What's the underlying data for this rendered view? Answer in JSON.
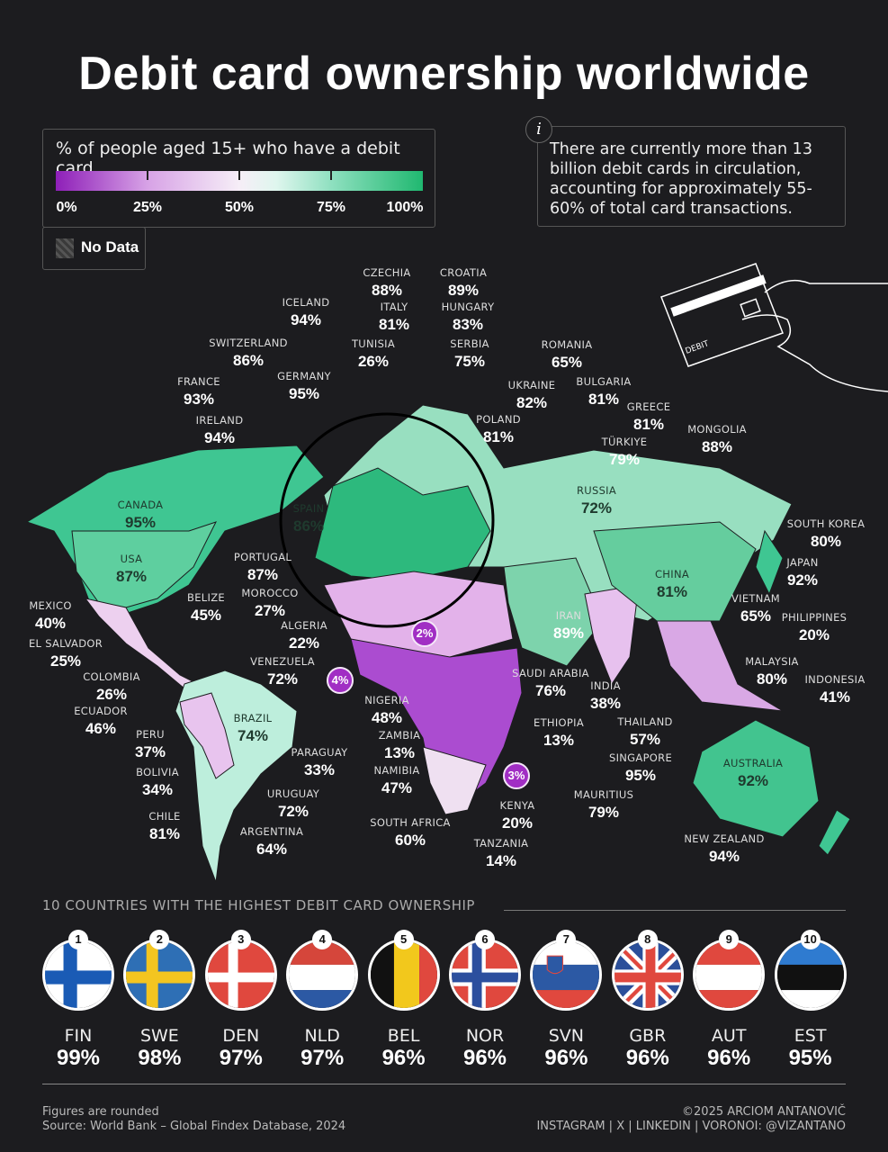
{
  "title": "Debit card ownership worldwide",
  "legend": {
    "title": "% of people aged 15+ who have a debit card",
    "ticks": [
      "0%",
      "25%",
      "50%",
      "75%",
      "100%"
    ],
    "no_data": "No Data",
    "colors": {
      "low": "#8e1fb8",
      "mid": "#f6eef7",
      "high": "#20b870",
      "no_data": "#444444"
    }
  },
  "info": {
    "icon": "info-icon",
    "text": "There are currently more than 13 billion debit cards in circulation, accounting for approximately 55-60% of total card transactions."
  },
  "card_illustration": {
    "label": "DEBIT"
  },
  "countries": [
    {
      "name": "CZECHIA",
      "value": "88%"
    },
    {
      "name": "CROATIA",
      "value": "89%"
    },
    {
      "name": "ICELAND",
      "value": "94%"
    },
    {
      "name": "ITALY",
      "value": "81%"
    },
    {
      "name": "HUNGARY",
      "value": "83%"
    },
    {
      "name": "SWITZERLAND",
      "value": "86%"
    },
    {
      "name": "TUNISIA",
      "value": "26%"
    },
    {
      "name": "SERBIA",
      "value": "75%"
    },
    {
      "name": "ROMANIA",
      "value": "65%"
    },
    {
      "name": "GERMANY",
      "value": "95%"
    },
    {
      "name": "FRANCE",
      "value": "93%"
    },
    {
      "name": "UKRAINE",
      "value": "82%"
    },
    {
      "name": "BULGARIA",
      "value": "81%"
    },
    {
      "name": "GREECE",
      "value": "81%"
    },
    {
      "name": "IRELAND",
      "value": "94%"
    },
    {
      "name": "POLAND",
      "value": "81%"
    },
    {
      "name": "TÜRKIYE",
      "value": "79%"
    },
    {
      "name": "MONGOLIA",
      "value": "88%"
    },
    {
      "name": "CANADA",
      "value": "95%"
    },
    {
      "name": "RUSSIA",
      "value": "72%"
    },
    {
      "name": "SPAIN",
      "value": "86%"
    },
    {
      "name": "SOUTH KOREA",
      "value": "80%"
    },
    {
      "name": "USA",
      "value": "87%"
    },
    {
      "name": "PORTUGAL",
      "value": "87%"
    },
    {
      "name": "JAPAN",
      "value": "92%"
    },
    {
      "name": "CHINA",
      "value": "81%"
    },
    {
      "name": "MOROCCO",
      "value": "27%"
    },
    {
      "name": "VIETNAM",
      "value": "65%"
    },
    {
      "name": "MEXICO",
      "value": "40%"
    },
    {
      "name": "BELIZE",
      "value": "45%"
    },
    {
      "name": "PHILIPPINES",
      "value": "20%"
    },
    {
      "name": "ALGERIA",
      "value": "22%"
    },
    {
      "name": "IRAN",
      "value": "89%"
    },
    {
      "name": "EL SALVADOR",
      "value": "25%"
    },
    {
      "name": "VENEZUELA",
      "value": "72%"
    },
    {
      "name": "MALAYSIA",
      "value": "80%"
    },
    {
      "name": "SAUDI ARABIA",
      "value": "76%"
    },
    {
      "name": "INDIA",
      "value": "38%"
    },
    {
      "name": "INDONESIA",
      "value": "41%"
    },
    {
      "name": "COLOMBIA",
      "value": "26%"
    },
    {
      "name": "NIGERIA",
      "value": "48%"
    },
    {
      "name": "ECUADOR",
      "value": "46%"
    },
    {
      "name": "BRAZIL",
      "value": "74%"
    },
    {
      "name": "ETHIOPIA",
      "value": "13%"
    },
    {
      "name": "THAILAND",
      "value": "57%"
    },
    {
      "name": "PERU",
      "value": "37%"
    },
    {
      "name": "ZAMBIA",
      "value": "13%"
    },
    {
      "name": "PARAGUAY",
      "value": "33%"
    },
    {
      "name": "SINGAPORE",
      "value": "95%"
    },
    {
      "name": "AUSTRALIA",
      "value": "92%"
    },
    {
      "name": "BOLIVIA",
      "value": "34%"
    },
    {
      "name": "NAMIBIA",
      "value": "47%"
    },
    {
      "name": "MAURITIUS",
      "value": "79%"
    },
    {
      "name": "URUGUAY",
      "value": "72%"
    },
    {
      "name": "KENYA",
      "value": "20%"
    },
    {
      "name": "CHILE",
      "value": "81%"
    },
    {
      "name": "SOUTH AFRICA",
      "value": "60%"
    },
    {
      "name": "ARGENTINA",
      "value": "64%"
    },
    {
      "name": "NEW ZEALAND",
      "value": "94%"
    },
    {
      "name": "TANZANIA",
      "value": "14%"
    }
  ],
  "flag_bubbles": [
    {
      "value": "2%",
      "flag": "niger"
    },
    {
      "value": "4%",
      "flag": "sierra-leone"
    },
    {
      "value": "3%",
      "flag": "madagascar"
    }
  ],
  "top10": {
    "heading": "10 COUNTRIES WITH THE HIGHEST DEBIT CARD OWNERSHIP",
    "items": [
      {
        "rank": "1",
        "code": "FIN",
        "value": "99%"
      },
      {
        "rank": "2",
        "code": "SWE",
        "value": "98%"
      },
      {
        "rank": "3",
        "code": "DEN",
        "value": "97%"
      },
      {
        "rank": "4",
        "code": "NLD",
        "value": "97%"
      },
      {
        "rank": "5",
        "code": "BEL",
        "value": "96%"
      },
      {
        "rank": "6",
        "code": "NOR",
        "value": "96%"
      },
      {
        "rank": "7",
        "code": "SVN",
        "value": "96%"
      },
      {
        "rank": "8",
        "code": "GBR",
        "value": "96%"
      },
      {
        "rank": "9",
        "code": "AUT",
        "value": "96%"
      },
      {
        "rank": "10",
        "code": "EST",
        "value": "95%"
      }
    ]
  },
  "footer": {
    "note": "Figures are rounded",
    "source": "Source: World Bank – Global Findex Database, 2024",
    "copyright": "©2025 ARCIOM ANTANOVIČ",
    "social": "INSTAGRAM | X | LINKEDIN | VORONOI: @VIZANTANO"
  }
}
